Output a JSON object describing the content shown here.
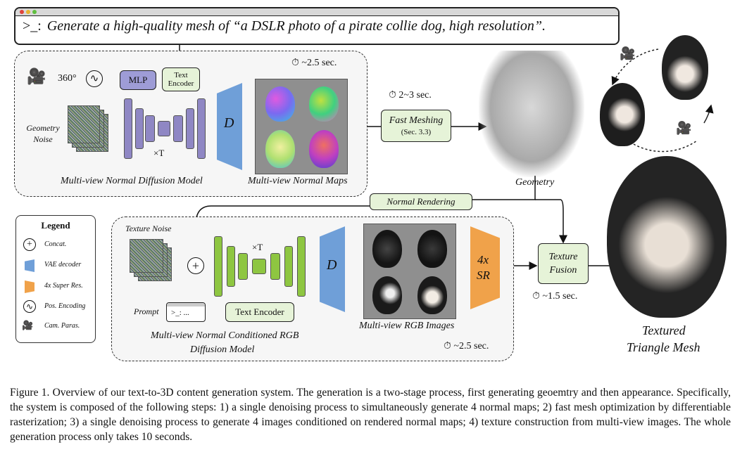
{
  "prompt": {
    "icon": ">_:",
    "text": "Generate a high-quality mesh of “a DSLR photo of a pirate collie dog, high resolution”."
  },
  "stage1": {
    "time": "~2.5 sec.",
    "deg": "360°",
    "mlp": "MLP",
    "text_encoder": "Text Encoder",
    "geometry_noise": "Geometry Noise",
    "times_t": "×T",
    "decoder": "D",
    "model_label": "Multi-view Normal Diffusion Model",
    "maps_label": "Multi-view Normal Maps"
  },
  "meshing": {
    "time": "2~3 sec.",
    "title": "Fast Meshing",
    "ref": "(Sec. 3.3)"
  },
  "geometry_label": "Geometry",
  "normal_rendering": "Normal Rendering",
  "stage2": {
    "texture_noise": "Texture Noise",
    "times_t": "×T",
    "prompt_label": "Prompt",
    "prompt_icon": ">_: ...",
    "text_encoder": "Text Encoder",
    "decoder": "D",
    "sr_top": "4x",
    "sr_bottom": "SR",
    "model_label_1": "Multi-view Normal Conditioned RGB",
    "model_label_2": "Diffusion Model",
    "images_label": "Multi-view RGB Images",
    "time": "~2.5 sec."
  },
  "fusion": {
    "line1": "Texture",
    "line2": "Fusion",
    "time": "~1.5 sec."
  },
  "output": {
    "line1": "Textured",
    "line2": "Triangle Mesh"
  },
  "legend": {
    "title": "Legend",
    "items": [
      "Concat.",
      "VAE decoder",
      "4x Super Res.",
      "Pos. Encoding",
      "Cam. Paras."
    ]
  },
  "caption": "Figure 1. Overview of our text-to-3D content generation system. The generation is a two-stage process, first generating geoemtry and then appearance. Specifically, the system is composed of the following steps: 1) a single denoising process to simultaneously generate 4 normal maps; 2) fast mesh optimization by differentiable rasterization; 3) a single denoising process to generate 4 images conditioned on rendered normal maps; 4) texture construction from multi-view images. The whole generation process only takes 10 seconds.",
  "colors": {
    "unet": "#8f87c4",
    "unet2": "#8ec641",
    "vae": "#6f9fd8",
    "sr": "#f0a24a",
    "greenbox": "#e6f3d8"
  }
}
